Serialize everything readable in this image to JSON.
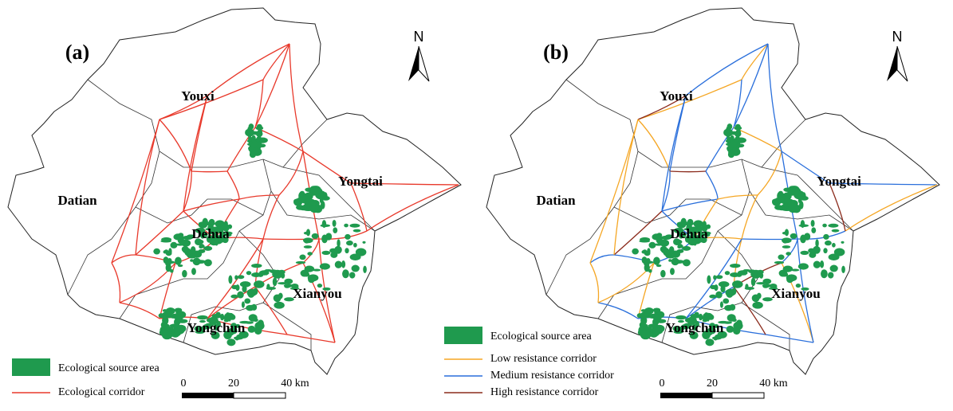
{
  "panels": [
    {
      "label": "(a)",
      "north": "N",
      "places": [
        "Youxi",
        "Datian",
        "Yongtai",
        "Dehua",
        "Xianyou",
        "Yongchun"
      ],
      "legend": [
        "Ecological source area",
        "Ecological corridor"
      ],
      "scale": [
        "0",
        "20",
        "40 km"
      ]
    },
    {
      "label": "(b)",
      "north": "N",
      "places": [
        "Youxi",
        "Datian",
        "Yongtai",
        "Dehua",
        "Xianyou",
        "Yongchun"
      ],
      "legend": [
        "Ecological source area",
        "Low resistance corridor",
        "Medium resistance corridor",
        "High resistance corridor"
      ],
      "scale": [
        "0",
        "20",
        "40 km"
      ]
    }
  ]
}
